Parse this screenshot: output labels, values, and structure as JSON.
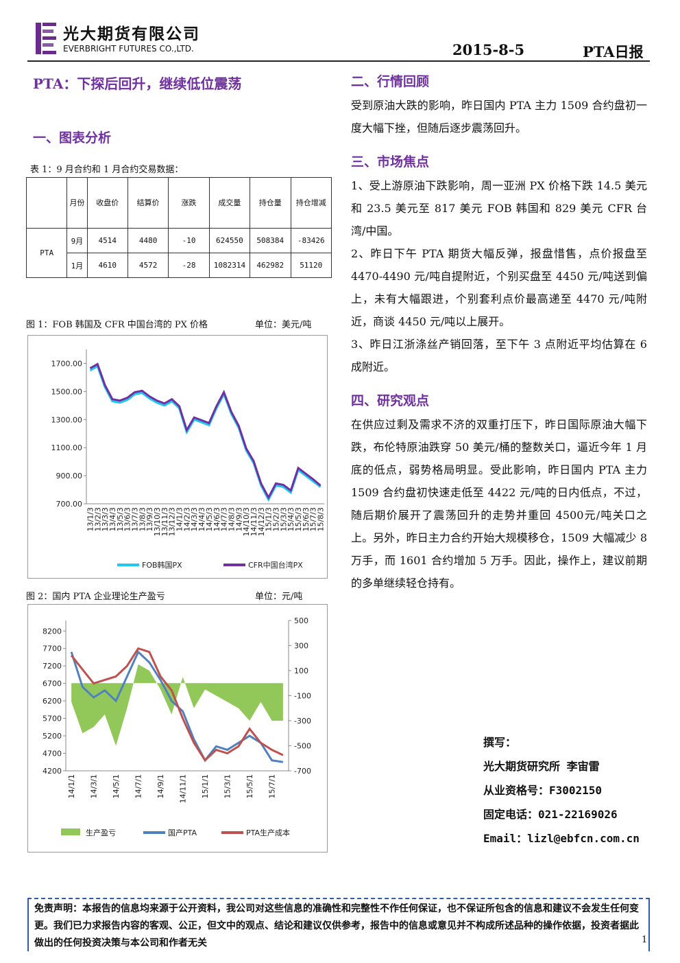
{
  "header": {
    "company_cn": "光大期货有限公司",
    "company_en": "EVERBRIGHT FUTURES CO.,LTD.",
    "date": "2015-8-5",
    "report": "PTA日报"
  },
  "headline": "PTA：下探后回升，继续低位震荡",
  "section1": {
    "title": "一、图表分析"
  },
  "table": {
    "caption": "表 1：9 月合约和 1 月合约交易数据：",
    "headers": [
      "月份",
      "收盘价",
      "结算价",
      "涨跌",
      "成交量",
      "持仓量",
      "持仓增减"
    ],
    "product": "PTA",
    "rows": [
      [
        "9月",
        "4514",
        "4480",
        "-10",
        "624550",
        "508384",
        "-83426"
      ],
      [
        "1月",
        "4610",
        "4572",
        "-28",
        "1082314",
        "462982",
        "51120"
      ]
    ]
  },
  "chart_data": [
    {
      "type": "line",
      "title": "图 1：FOB 韩国及 CFR 中国台湾的 PX 价格",
      "unit": "单位：美元/吨",
      "categories": [
        "13/1/3",
        "13/2/3",
        "13/3/3",
        "13/4/3",
        "13/5/3",
        "13/6/3",
        "13/7/3",
        "13/8/3",
        "13/9/3",
        "13/10/3",
        "13/11/3",
        "13/12/3",
        "14/1/3",
        "14/2/3",
        "14/3/3",
        "14/4/3",
        "14/5/3",
        "14/6/3",
        "14/7/3",
        "14/8/3",
        "14/9/3",
        "14/10/3",
        "14/11/3",
        "14/12/3",
        "15/1/3",
        "15/2/3",
        "15/3/3",
        "15/4/3",
        "15/5/3",
        "15/6/3",
        "15/7/3",
        "15/8/3"
      ],
      "series": [
        {
          "name": "FOB韩国PX",
          "color": "#1ec8f0",
          "values": [
            1650,
            1680,
            1530,
            1430,
            1420,
            1440,
            1480,
            1490,
            1450,
            1420,
            1400,
            1430,
            1380,
            1210,
            1300,
            1280,
            1260,
            1380,
            1480,
            1340,
            1240,
            1080,
            990,
            830,
            730,
            830,
            820,
            780,
            940,
            900,
            860,
            820
          ]
        },
        {
          "name": "CFR中国台湾PX",
          "color": "#7030a0",
          "values": [
            1665,
            1695,
            1545,
            1445,
            1435,
            1455,
            1495,
            1505,
            1465,
            1435,
            1415,
            1445,
            1395,
            1225,
            1315,
            1295,
            1275,
            1395,
            1495,
            1355,
            1255,
            1095,
            1005,
            845,
            745,
            845,
            835,
            795,
            955,
            915,
            875,
            830
          ]
        }
      ],
      "ylim": [
        700,
        1800
      ],
      "yticks": [
        {
          "value": 700,
          "label": "700.00"
        },
        {
          "value": 900,
          "label": "900.00"
        },
        {
          "value": 1100,
          "label": "1100.00"
        },
        {
          "value": 1300,
          "label": "1300.00"
        },
        {
          "value": 1500,
          "label": "1500.00"
        },
        {
          "value": 1700,
          "label": "1700.00"
        }
      ],
      "grid": false,
      "legend": "bottom"
    },
    {
      "type": "combo",
      "title": "图 2：国内 PTA 企业理论生产盈亏",
      "unit": "单位：元/吨",
      "categories": [
        "14/1/1",
        null,
        "14/3/1",
        null,
        "14/5/1",
        null,
        "14/7/1",
        null,
        "14/9/1",
        null,
        "14/11/1",
        null,
        "15/1/1",
        null,
        "15/3/1",
        null,
        "15/5/1",
        null,
        "15/7/1",
        null
      ],
      "series": [
        {
          "name": "生产盈亏",
          "color": "#92c85a",
          "kind": "area",
          "axis": "y2",
          "values": [
            -150,
            -400,
            -350,
            -250,
            -500,
            -200,
            150,
            100,
            -50,
            -250,
            50,
            -200,
            -50,
            -100,
            -150,
            -200,
            -300,
            -150,
            -300,
            -300
          ]
        },
        {
          "name": "国产PTA",
          "color": "#4f81bd",
          "kind": "line",
          "values": [
            7600,
            6600,
            6300,
            6500,
            6200,
            6900,
            7600,
            7300,
            6800,
            6200,
            5900,
            5100,
            4500,
            4900,
            4800,
            5000,
            5200,
            5000,
            4500,
            4450
          ]
        },
        {
          "name": "PTA生产成本",
          "color": "#c0504d",
          "kind": "line",
          "values": [
            7500,
            7100,
            6700,
            6800,
            6900,
            7200,
            7700,
            7600,
            6900,
            6500,
            5700,
            5000,
            4500,
            4800,
            4700,
            4900,
            5400,
            5000,
            4800,
            4650
          ]
        }
      ],
      "ylim": [
        4200,
        8500
      ],
      "yticks": [
        4200,
        4700,
        5200,
        5700,
        6200,
        6700,
        7200,
        7700,
        8200
      ],
      "y2lim": [
        -700,
        500
      ],
      "y2ticks": [
        -700,
        -500,
        -300,
        -100,
        100,
        300,
        500
      ],
      "grid": false,
      "legend": "bottom"
    }
  ],
  "sections": [
    {
      "title": "二、行情回顾",
      "paragraphs": [
        "受到原油大跌的影响，昨日国内 PTA 主力 1509 合约盘初一度大幅下挫，但随后逐步震荡回升。"
      ]
    },
    {
      "title": "三、市场焦点",
      "paragraphs": [
        "1、受上游原油下跌影响，周一亚洲 PX 价格下跌 14.5 美元和 23.5 美元至 817 美元 FOB 韩国和 829 美元 CFR 台湾/中国。",
        "2、昨日下午 PTA 期货大幅反弹，报盘惜售，点价报盘至 4470-4490 元/吨自提附近，个别买盘至 4450 元/吨送到偏上，未有大幅跟进，个别套利点价最高递至 4470 元/吨附近，商谈 4450 元/吨以上展开。",
        "3、昨日江浙涤丝产销回落，至下午 3 点附近平均估算在 6 成附近。"
      ]
    },
    {
      "title": "四、研究观点",
      "paragraphs": [
        "在供应过剩及需求不济的双重打压下，昨日国际原油大幅下跌，布伦特原油跌穿 50 美元/桶的整数关口，逼近今年 1 月底的低点，弱势格局明显。受此影响，昨日国内 PTA 主力 1509 合约盘初快速走低至 4422 元/吨的日内低点，不过，随后期价展开了震荡回升的走势并重回 4500元/吨关口之上。另外，昨日主力合约开始大规模移仓，1509 大幅减少 8 万手，而 1601 合约增加 5 万手。因此，操作上，建议前期的多单继续轻仓持有。"
      ]
    }
  ],
  "author": {
    "label": "撰写：",
    "name": "光大期货研究所 李宙雷",
    "license": "从业资格号：F3002150",
    "phone": "固定电话：021-22169026",
    "email": "Email：lizl@ebfcn.com.cn"
  },
  "disclaimer": "免责声明：本报告的信息均来源于公开资料，我公司对这些信息的准确性和完整性不作任何保证，也不保证所包含的信息和建议不会发生任何变更。我们已力求报告内容的客观、公正，但文中的观点、结论和建议仅供参考，报告中的信息或意见并不构成所述品种的操作依据，投资者据此做出的任何投资决策与本公司和作者无关",
  "page_number": "1"
}
